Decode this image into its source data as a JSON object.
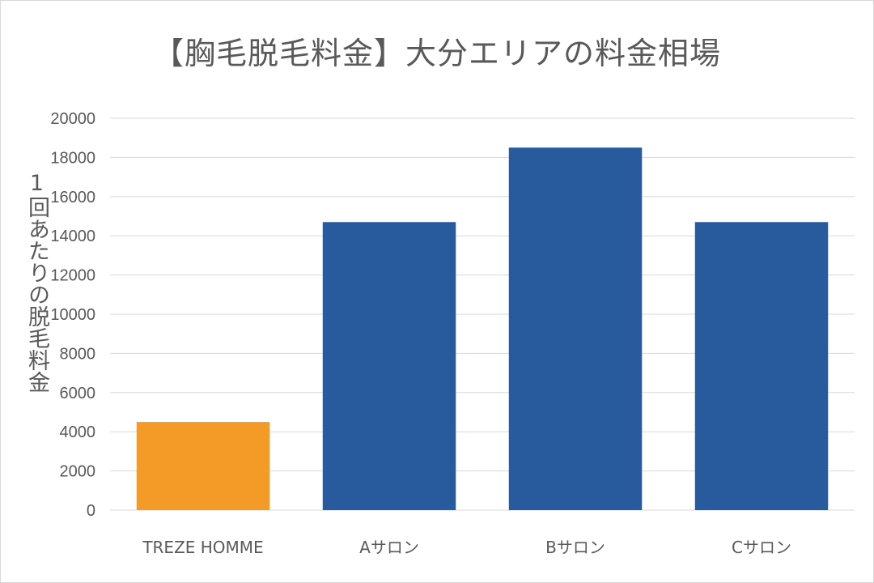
{
  "chart_data": {
    "type": "bar",
    "title": "【胸毛脱毛料金】大分エリアの料金相場",
    "xlabel": "",
    "ylabel": "1回あたりの脱毛料金",
    "ylim": [
      0,
      20000
    ],
    "yticks": [
      0,
      2000,
      4000,
      6000,
      8000,
      10000,
      12000,
      14000,
      16000,
      18000,
      20000
    ],
    "categories": [
      "TREZE HOMME",
      "Aサロン",
      "Bサロン",
      "Cサロン"
    ],
    "values": [
      4500,
      14700,
      18500,
      14700
    ],
    "bar_colors": [
      "#f39a27",
      "#285a9e",
      "#285a9e",
      "#285a9e"
    ],
    "grid": true,
    "legend": "none"
  },
  "colors": {
    "gridline": "#d9d9d9",
    "axis_text": "#595959"
  }
}
